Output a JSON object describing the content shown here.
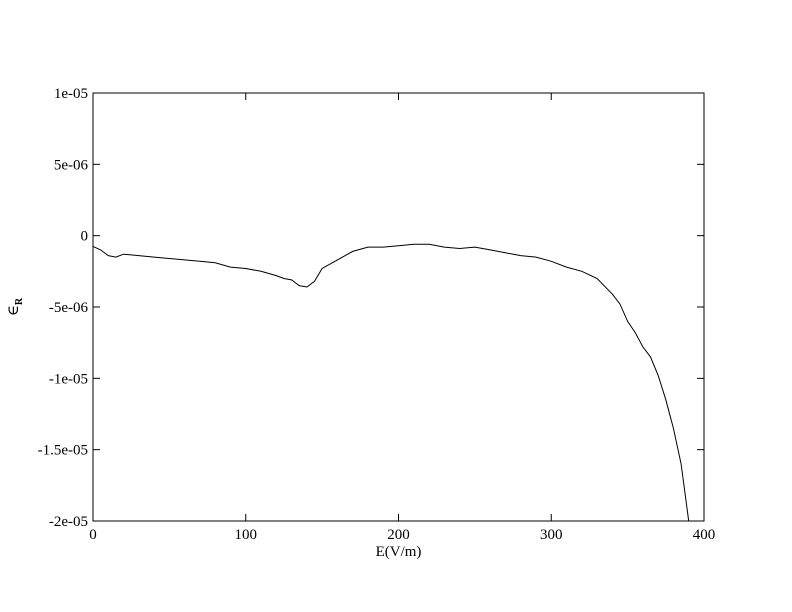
{
  "chart_data": {
    "type": "line",
    "title": "",
    "xlabel": "E(V/m)",
    "ylabel": {
      "symbol": "∈",
      "subscript": "R"
    },
    "xlim": [
      0,
      400
    ],
    "ylim": [
      -2e-05,
      1e-05
    ],
    "xticks": [
      {
        "value": 0,
        "label": "0"
      },
      {
        "value": 100,
        "label": "100"
      },
      {
        "value": 200,
        "label": "200"
      },
      {
        "value": 300,
        "label": "300"
      },
      {
        "value": 400,
        "label": "400"
      }
    ],
    "yticks": [
      {
        "value": 1e-05,
        "label": "1e-05"
      },
      {
        "value": 5e-06,
        "label": "5e-06"
      },
      {
        "value": 0,
        "label": "0"
      },
      {
        "value": -5e-06,
        "label": "-5e-06"
      },
      {
        "value": -1e-05,
        "label": "-1e-05"
      },
      {
        "value": -1.5e-05,
        "label": "-1.5e-05"
      },
      {
        "value": -2e-05,
        "label": "-2e-05"
      }
    ],
    "grid": false,
    "legend": "none",
    "line_color": "#000000",
    "series": [
      {
        "x": [
          0,
          5,
          10,
          15,
          20,
          30,
          40,
          50,
          60,
          70,
          80,
          90,
          100,
          110,
          120,
          125,
          130,
          135,
          140,
          145,
          150,
          160,
          170,
          180,
          190,
          200,
          210,
          220,
          230,
          240,
          250,
          260,
          270,
          280,
          290,
          300,
          310,
          320,
          330,
          340,
          345,
          350,
          355,
          360,
          365,
          370,
          375,
          380,
          385,
          390
        ],
        "y": [
          -7.5e-07,
          -1e-06,
          -1.4e-06,
          -1.5e-06,
          -1.3e-06,
          -1.4e-06,
          -1.5e-06,
          -1.6e-06,
          -1.7e-06,
          -1.8e-06,
          -1.9e-06,
          -2.2e-06,
          -2.3e-06,
          -2.5e-06,
          -2.8e-06,
          -3e-06,
          -3.1e-06,
          -3.5e-06,
          -3.6e-06,
          -3.2e-06,
          -2.3e-06,
          -1.7e-06,
          -1.1e-06,
          -8e-07,
          -8e-07,
          -7e-07,
          -6e-07,
          -6e-07,
          -8e-07,
          -9e-07,
          -8e-07,
          -1e-06,
          -1.2e-06,
          -1.4e-06,
          -1.5e-06,
          -1.8e-06,
          -2.2e-06,
          -2.5e-06,
          -3e-06,
          -4.1e-06,
          -4.8e-06,
          -6e-06,
          -6.8e-06,
          -7.8e-06,
          -8.5e-06,
          -9.8e-06,
          -1.15e-05,
          -1.35e-05,
          -1.6e-05,
          -2e-05
        ]
      }
    ]
  }
}
